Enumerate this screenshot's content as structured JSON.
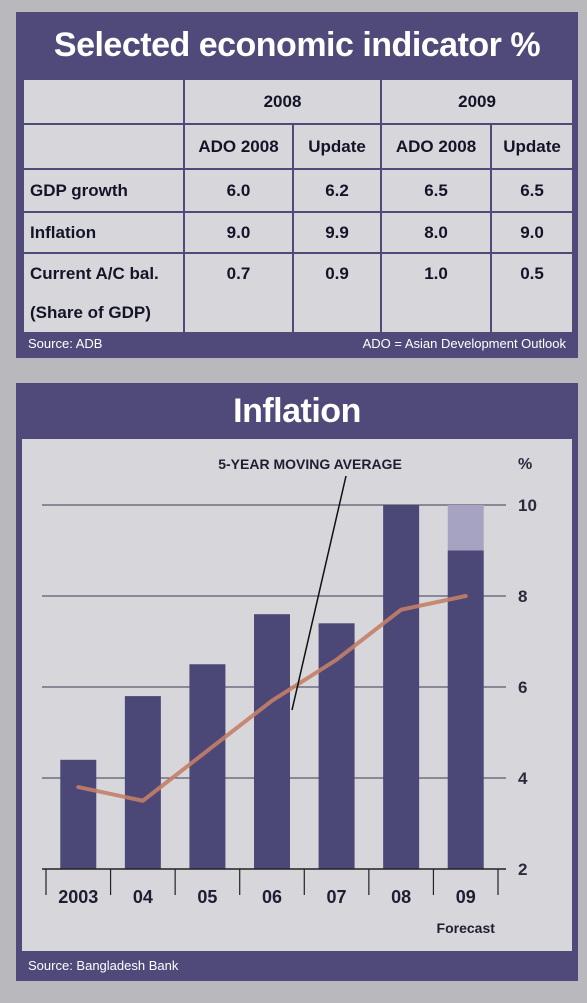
{
  "table_panel": {
    "title": "Selected economic indicator %",
    "year_headers": [
      "2008",
      "2009"
    ],
    "sub_headers": [
      "ADO 2008",
      "Update",
      "ADO 2008",
      "Update"
    ],
    "rows": [
      {
        "label": "GDP growth",
        "values": [
          "6.0",
          "6.2",
          "6.5",
          "6.5"
        ]
      },
      {
        "label": "Inflation",
        "values": [
          "9.0",
          "9.9",
          "8.0",
          "9.0"
        ]
      },
      {
        "label": "Current A/C bal.",
        "values": [
          "0.7",
          "0.9",
          "1.0",
          "0.5"
        ]
      },
      {
        "label": "(Share of GDP)",
        "values": [
          "",
          "",
          "",
          ""
        ]
      }
    ],
    "source": "Source: ADB",
    "note": "ADO = Asian Development Outlook"
  },
  "chart_panel": {
    "title": "Inflation",
    "source": "Source: Bangladesh Bank"
  },
  "chart_data": {
    "type": "bar",
    "title": "Inflation",
    "categories": [
      "2003",
      "04",
      "05",
      "06",
      "07",
      "08",
      "09"
    ],
    "series": [
      {
        "type": "bar",
        "values": [
          4.4,
          5.8,
          6.5,
          7.6,
          7.4,
          10.0,
          9.0
        ]
      },
      {
        "type": "bar",
        "values": [
          null,
          null,
          null,
          null,
          null,
          null,
          1.0
        ]
      },
      {
        "name": "5-YEAR MOVING AVERAGE",
        "type": "line",
        "values": [
          3.8,
          3.5,
          4.6,
          5.7,
          6.6,
          7.7,
          8.0
        ]
      }
    ],
    "annotations": [
      "5-YEAR MOVING AVERAGE",
      "Forecast"
    ],
    "ylabel": "%",
    "ylim": [
      2,
      10
    ],
    "yticks": [
      2,
      4,
      6,
      8,
      10
    ],
    "y_axis_side": "right",
    "grid": true,
    "colors": {
      "bar": "#4b4777",
      "forecast_top": "#a6a3c2",
      "line": "#c47e67",
      "grid": "#3a3a52",
      "background": "#d7d7db"
    }
  }
}
